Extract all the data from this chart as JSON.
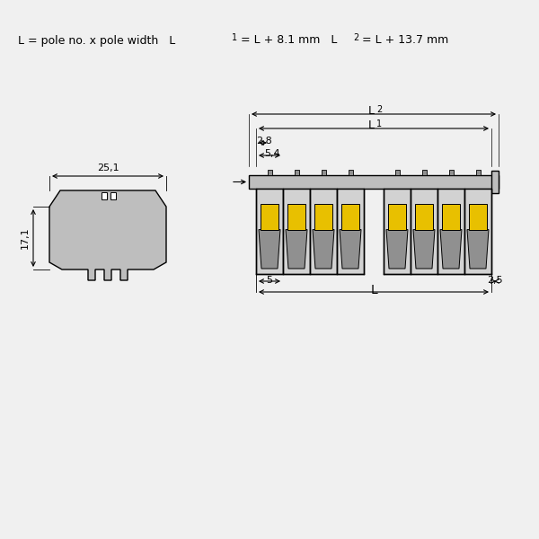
{
  "bg_color": "#f0f0f0",
  "line_color": "#000000",
  "gray_fill": "#bebebe",
  "gray_light": "#d2d2d2",
  "gray_dark": "#909090",
  "yellow_fill": "#e8c000",
  "formula_text": "L = pole no. x pole width   L",
  "formula_sub1": "1",
  "formula_mid": " = L + 8.1 mm   L",
  "formula_sub2": "2",
  "formula_end": " = L + 13.7 mm",
  "dim_25_1": "25,1",
  "dim_17_1": "17,1",
  "dim_5": "5",
  "dim_2_5": "2,5",
  "dim_5_4": "5,4",
  "dim_2_8": "2,8",
  "dim_L": "L",
  "dim_L1": "L",
  "dim_L1_sub": "1",
  "dim_L2": "L",
  "dim_L2_sub": "2",
  "num_poles": 4
}
